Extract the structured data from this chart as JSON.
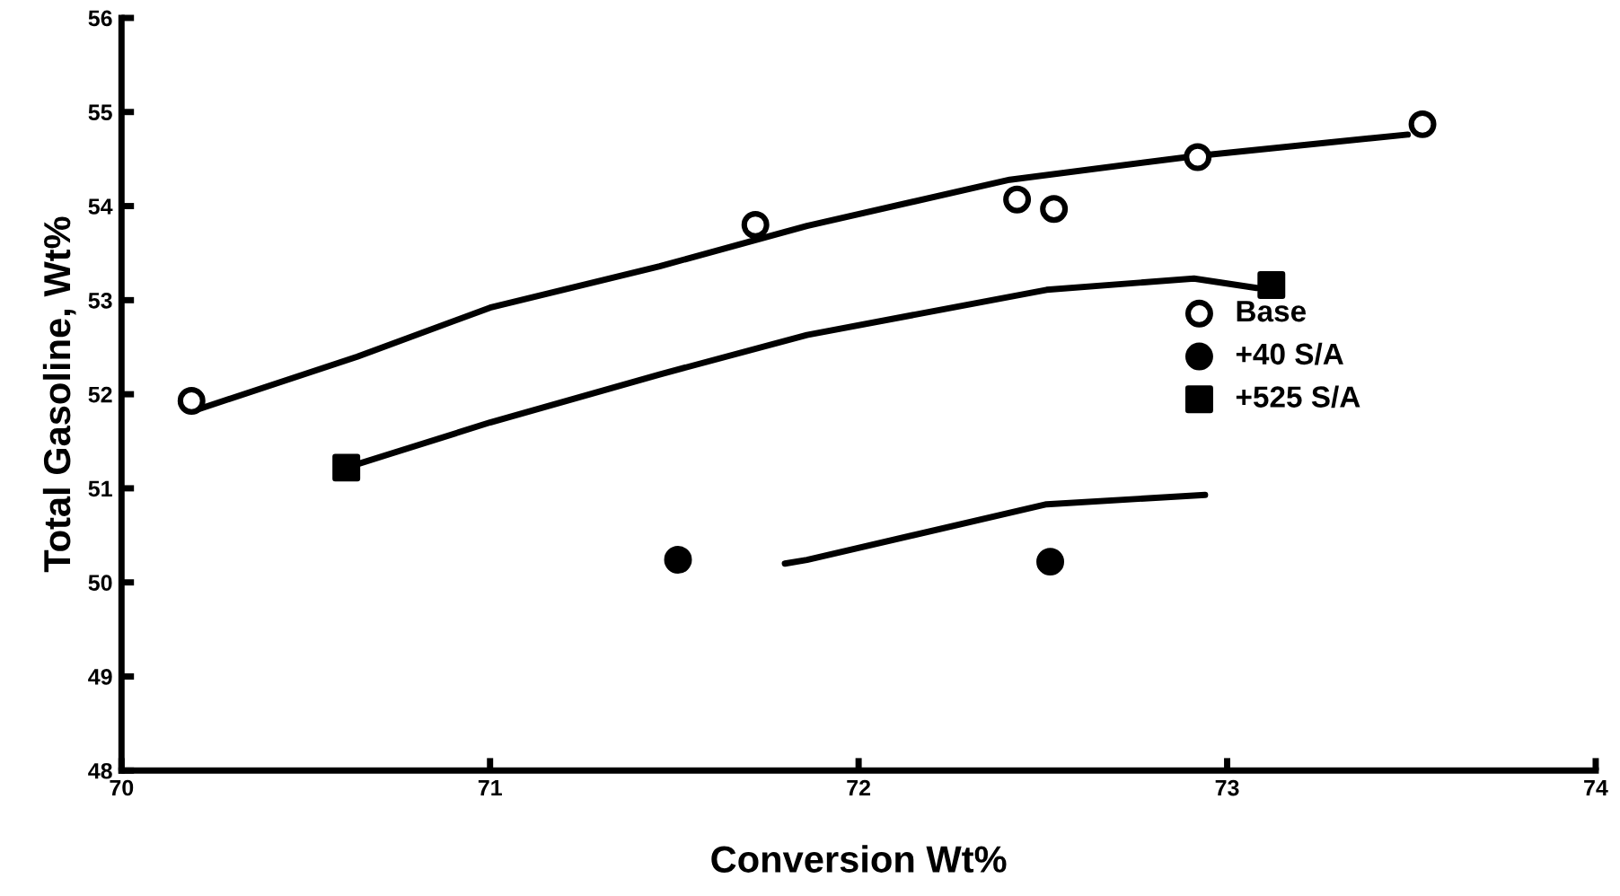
{
  "chart_data": {
    "type": "scatter",
    "xlabel": "Conversion Wt%",
    "ylabel": "Total Gasoline, Wt%",
    "xlim": [
      70,
      74
    ],
    "xticks": [
      70,
      71,
      72,
      73,
      74
    ],
    "ylim": [
      48,
      56
    ],
    "yticks": [
      48,
      49,
      50,
      51,
      52,
      53,
      54,
      55,
      56
    ],
    "grid": false,
    "legend": "right",
    "series": [
      {
        "name": "Base",
        "marker": "circle",
        "color": "#ffffff",
        "x": [
          70.19,
          71.72,
          72.43,
          72.53,
          72.92,
          73.53
        ],
        "values": [
          51.93,
          53.8,
          54.07,
          53.97,
          54.52,
          54.87
        ]
      },
      {
        "name": "+40 S/A",
        "marker": "circle",
        "color": "#000000",
        "x": [
          71.51,
          72.52
        ],
        "values": [
          50.24,
          50.22
        ]
      },
      {
        "name": "+525 S/A",
        "marker": "square",
        "color": "#000000",
        "x": [
          70.61,
          73.12
        ],
        "values": [
          51.22,
          53.16
        ]
      },
      {
        "type": "line",
        "marker": "none",
        "line_style": "solid",
        "color": "#000000",
        "x": [
          70.2,
          70.64,
          71.0,
          71.46,
          71.86,
          72.41,
          72.91,
          73.49
        ],
        "values": [
          51.83,
          52.4,
          52.92,
          53.36,
          53.79,
          54.28,
          54.53,
          54.76
        ]
      },
      {
        "type": "line",
        "marker": "none",
        "line_style": "solid",
        "color": "#000000",
        "x": [
          70.61,
          71.0,
          71.46,
          71.86,
          72.51,
          72.91,
          73.08
        ],
        "values": [
          51.22,
          51.7,
          52.21,
          52.63,
          53.11,
          53.23,
          53.13
        ]
      },
      {
        "type": "line",
        "marker": "none",
        "line_style": "solid",
        "color": "#000000",
        "x": [
          71.8,
          71.86,
          72.51,
          72.94
        ],
        "values": [
          50.2,
          50.24,
          50.83,
          50.93
        ]
      }
    ]
  }
}
